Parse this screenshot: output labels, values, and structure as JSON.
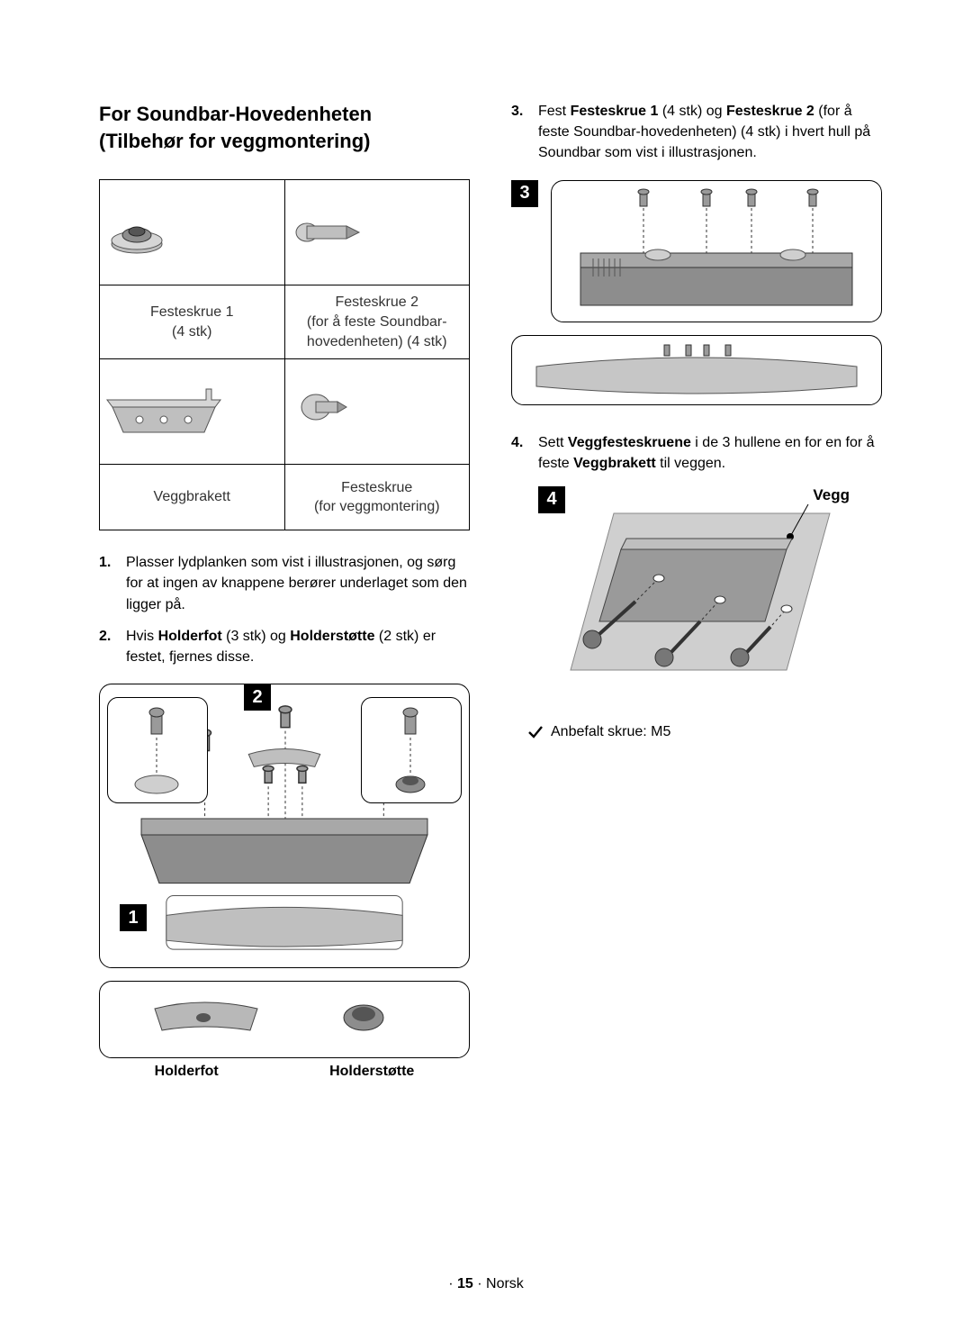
{
  "colors": {
    "text": "#000000",
    "border": "#000000",
    "bg": "#ffffff",
    "gray_fill": "#bfbfbf",
    "gray_mid": "#8d8d8d",
    "gray_dark": "#555555",
    "badge_bg": "#000000",
    "badge_fg": "#ffffff"
  },
  "left": {
    "heading_line1": "For Soundbar-Hovedenheten",
    "heading_line2": "(Tilbehør for veggmontering)",
    "parts_table": {
      "cells": [
        {
          "label": "Festeskrue 1\n(4 stk)"
        },
        {
          "label": "Festeskrue 2\n(for å feste Soundbar-\nhovedenheten) (4 stk)"
        },
        {
          "label": "Veggbrakett"
        },
        {
          "label": "Festeskrue\n(for veggmontering)"
        }
      ]
    },
    "steps": [
      {
        "n": "1.",
        "html": "Plasser lydplanken som vist i illustrasjonen, og sørg for at ingen av knappene berører underlaget som den ligger på."
      },
      {
        "n": "2.",
        "html": "Hvis <b>Holderfot</b> (3 stk) og <b>Holderstøtte</b> (2 stk) er festet, fjernes disse."
      }
    ],
    "illus": {
      "badge1": "1",
      "badge2": "2",
      "holderfot_label": "Holderfot",
      "holderstotte_label": "Holderstøtte"
    }
  },
  "right": {
    "steps_a": [
      {
        "n": "3.",
        "html": "Fest <b>Festeskrue 1</b> (4 stk) og <b>Festeskrue 2</b> (for å feste Soundbar-hovedenheten) (4 stk) i hvert hull på Soundbar som vist i illustrasjonen."
      }
    ],
    "illus3_badge": "3",
    "steps_b": [
      {
        "n": "4.",
        "html": "Sett <b>Veggfesteskruene</b> i de 3 hullene en for en for å feste <b>Veggbrakett</b> til veggen."
      }
    ],
    "illus4": {
      "badge": "4",
      "wall_label": "Vegg"
    },
    "check_text": "Anbefalt skrue: M5"
  },
  "footer": {
    "dot": "·",
    "page": "15",
    "lang": "Norsk"
  }
}
